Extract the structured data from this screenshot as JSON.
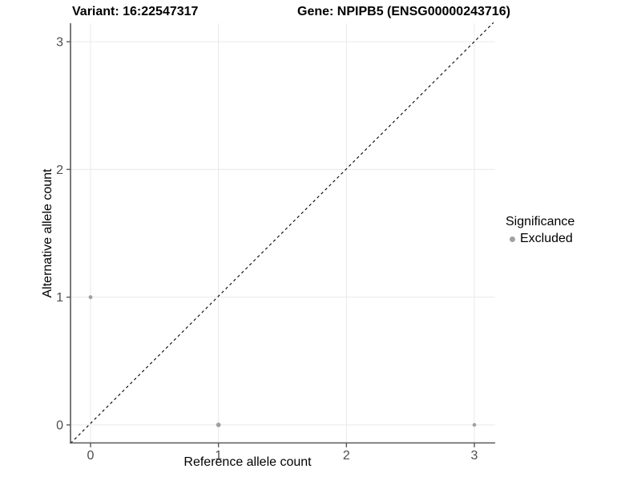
{
  "chart_data": {
    "type": "scatter",
    "title_left": "Variant: 16:22547317",
    "title_right": "Gene: NPIPB5 (ENSG00000243716)",
    "xlabel": "Reference allele count",
    "ylabel": "Alternative allele count",
    "x_ticks": [
      0,
      1,
      2,
      3
    ],
    "y_ticks": [
      0,
      1,
      2,
      3
    ],
    "xlim": [
      -0.16,
      3.17
    ],
    "ylim": [
      -0.15,
      3.15
    ],
    "grid": true,
    "identity_line": {
      "style": "dashed",
      "color": "#000000",
      "from": [
        -0.16,
        -0.16
      ],
      "to": [
        3.15,
        3.15
      ]
    },
    "series": [
      {
        "name": "Excluded",
        "color": "#a0a0a0",
        "points": [
          {
            "x": 0,
            "y": 1,
            "r": 2.4
          },
          {
            "x": 1,
            "y": 0,
            "r": 2.9
          },
          {
            "x": 3,
            "y": 0,
            "r": 2.3
          }
        ]
      }
    ],
    "legend": {
      "title": "Significance",
      "position": "right",
      "items": [
        {
          "label": "Excluded",
          "color": "#a0a0a0"
        }
      ]
    }
  },
  "colors": {
    "axis_line": "#595959",
    "grid_line": "#e8e8e8",
    "tick_text": "#4d4d4d",
    "title_text": "#000000"
  }
}
